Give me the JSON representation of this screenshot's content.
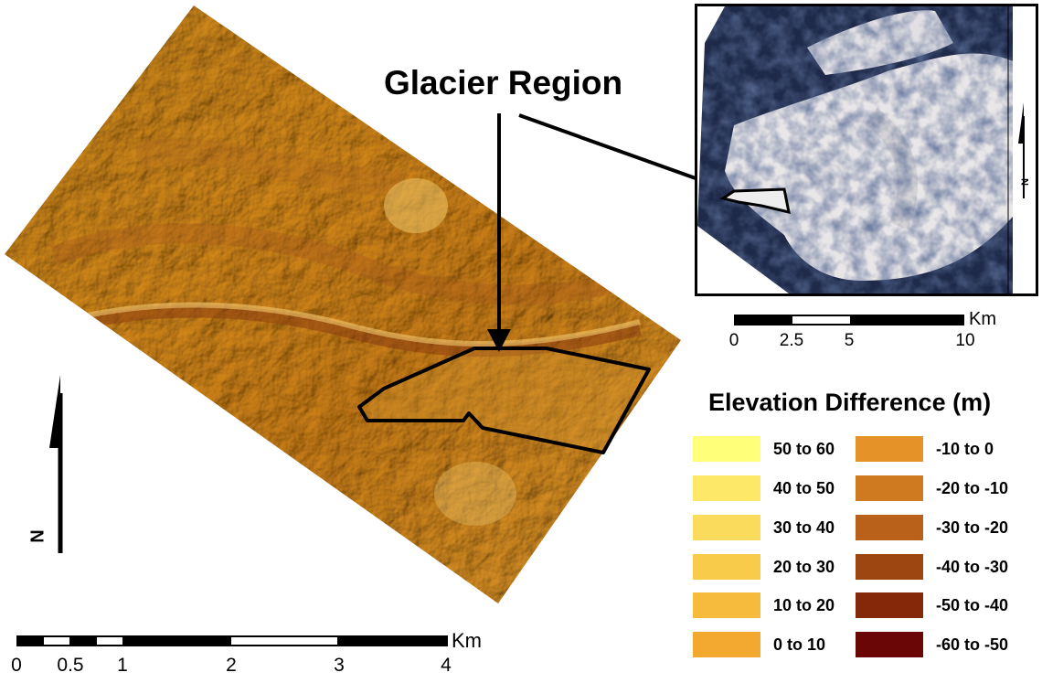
{
  "title": "Glacier Region",
  "main_scale": {
    "unit": "Km",
    "ticks": [
      "0",
      "0.5",
      "1",
      "2",
      "3",
      "4"
    ]
  },
  "inset_scale": {
    "unit": "Km",
    "ticks": [
      "0",
      "2.5",
      "5",
      "10"
    ]
  },
  "north_label": "N",
  "legend": {
    "title": "Elevation Difference (m)",
    "items": [
      {
        "label": "50 to 60",
        "color": "#ffff7a"
      },
      {
        "label": "40 to 50",
        "color": "#fde868"
      },
      {
        "label": "30 to 40",
        "color": "#fbdb5c"
      },
      {
        "label": "20 to 30",
        "color": "#f8cb4a"
      },
      {
        "label": "10 to 20",
        "color": "#f6bb3c"
      },
      {
        "label": "0 to 10",
        "color": "#f3a930"
      },
      {
        "label": "-10 to 0",
        "color": "#e59328"
      },
      {
        "label": "-20 to -10",
        "color": "#cf7a20"
      },
      {
        "label": "-30 to -20",
        "color": "#b9611a"
      },
      {
        "label": "-40 to -30",
        "color": "#9e4612"
      },
      {
        "label": "-50 to -40",
        "color": "#85280a"
      },
      {
        "label": "-60 to -50",
        "color": "#6a0606"
      }
    ]
  }
}
